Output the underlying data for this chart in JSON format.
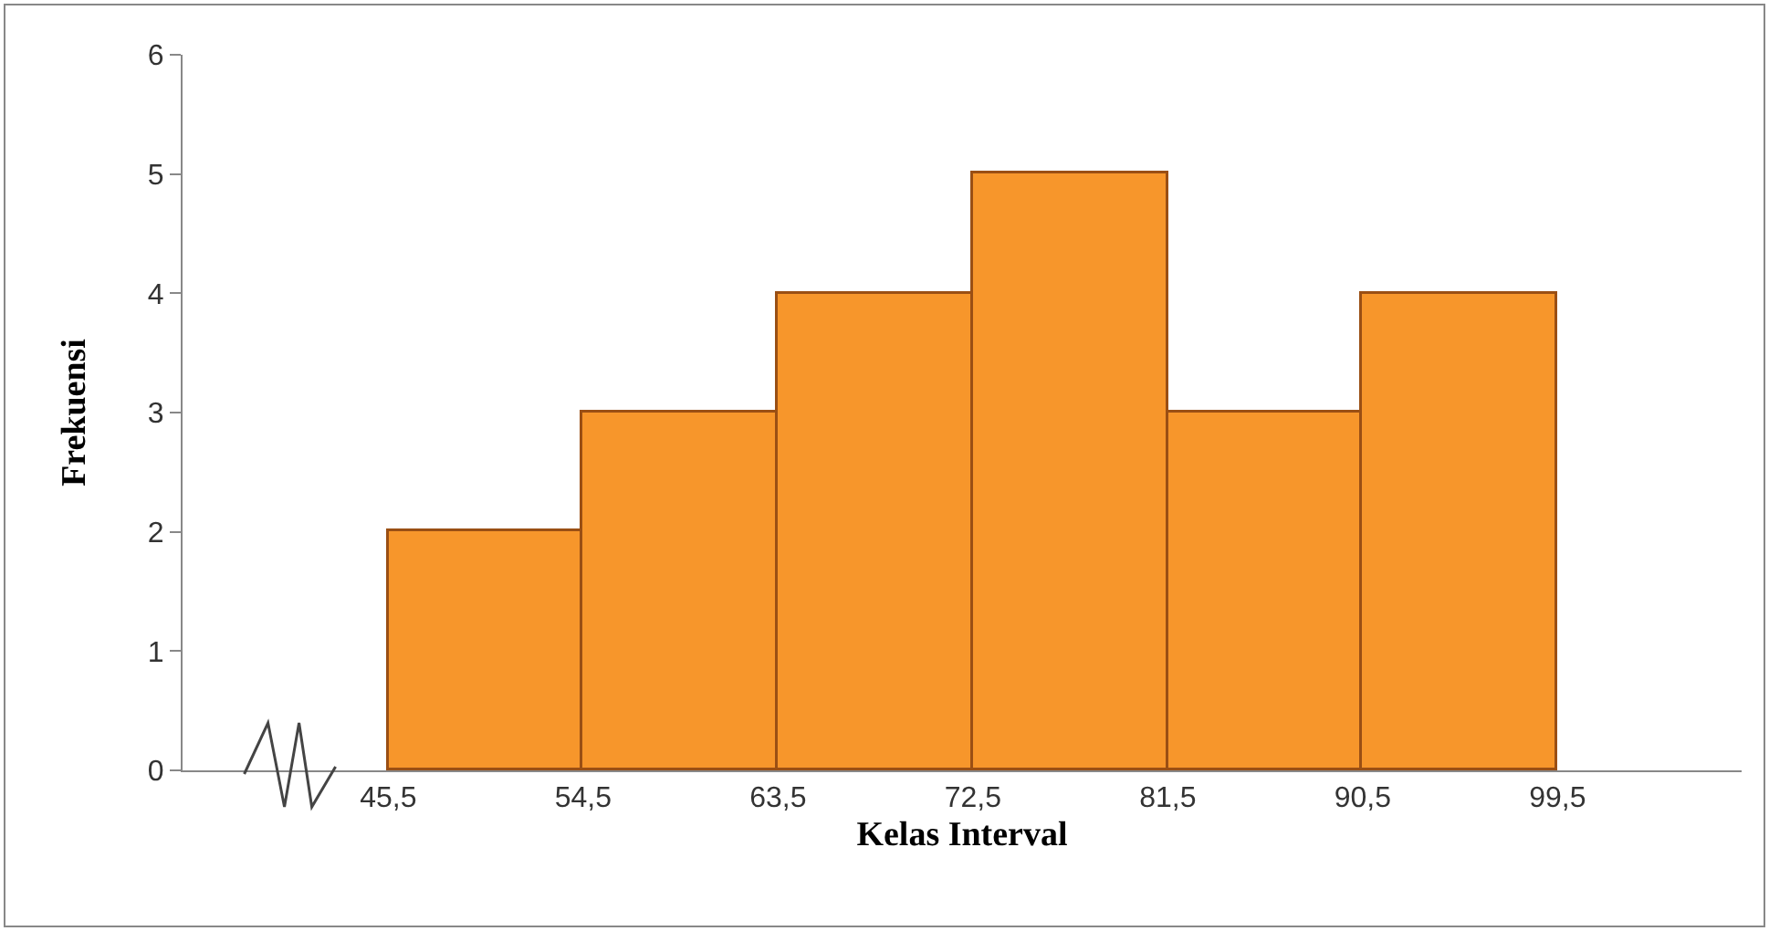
{
  "chart_data": {
    "type": "histogram",
    "xlabel": "Kelas Interval",
    "ylabel": "Frekuensi",
    "bins": [
      45.5,
      54.5,
      63.5,
      72.5,
      81.5,
      90.5,
      99.5
    ],
    "values": [
      2,
      3,
      4,
      5,
      3,
      4
    ],
    "color": "#f7962b",
    "xlim": [
      36,
      108
    ],
    "xticks": [
      {
        "value": 45.5,
        "label": "45,5"
      },
      {
        "value": 54.5,
        "label": "54,5"
      },
      {
        "value": 63.5,
        "label": "63,5"
      },
      {
        "value": 72.5,
        "label": "72,5"
      },
      {
        "value": 81.5,
        "label": "81,5"
      },
      {
        "value": 90.5,
        "label": "90,5"
      },
      {
        "value": 99.5,
        "label": "99,5"
      }
    ],
    "ylim": [
      0,
      6
    ],
    "yticks": [
      0,
      1,
      2,
      3,
      4,
      5,
      6
    ],
    "grid": false
  }
}
